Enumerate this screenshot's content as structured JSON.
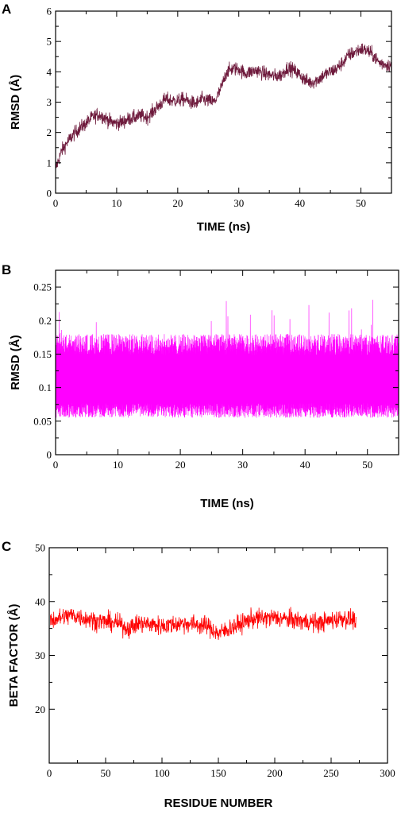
{
  "chart_data": [
    {
      "type": "line",
      "panel": "A",
      "xlabel": "TIME (ns)",
      "ylabel": "RMSD (Å)",
      "xlim": [
        0,
        55
      ],
      "ylim": [
        0,
        6
      ],
      "xticks": [
        0,
        10,
        20,
        30,
        40,
        50
      ],
      "yticks": [
        0,
        1,
        2,
        3,
        4,
        5,
        6
      ],
      "grid": false,
      "color": "#6e1a3c",
      "series": [
        {
          "x": [
            0,
            1,
            2,
            3,
            4,
            5,
            6,
            7,
            8,
            9,
            10,
            11,
            12,
            13,
            14,
            15,
            16,
            17,
            18,
            19,
            20,
            21,
            22,
            23,
            24,
            25,
            26,
            27,
            28,
            29,
            30,
            31,
            32,
            33,
            34,
            35,
            36,
            37,
            38,
            39,
            40,
            41,
            42,
            43,
            44,
            45,
            46,
            47,
            48,
            49,
            50,
            51,
            52,
            53,
            54,
            55
          ],
          "values": [
            0.8,
            1.4,
            1.7,
            1.95,
            2.15,
            2.3,
            2.5,
            2.6,
            2.5,
            2.35,
            2.3,
            2.35,
            2.45,
            2.5,
            2.55,
            2.5,
            2.7,
            2.9,
            3.1,
            3.05,
            3.05,
            3.1,
            3.0,
            2.95,
            3.1,
            3.05,
            3.0,
            3.4,
            4.0,
            4.1,
            4.1,
            3.95,
            4.0,
            4.05,
            3.95,
            3.9,
            3.85,
            3.9,
            4.15,
            4.05,
            3.9,
            3.7,
            3.65,
            3.75,
            3.9,
            4.0,
            4.1,
            4.3,
            4.55,
            4.65,
            4.75,
            4.7,
            4.55,
            4.3,
            4.25,
            4.2
          ]
        }
      ]
    },
    {
      "type": "line",
      "panel": "B",
      "xlabel": "TIME (ns)",
      "ylabel": "RMSD (Å)",
      "xlim": [
        0,
        55
      ],
      "ylim": [
        0,
        0.275
      ],
      "xticks": [
        0,
        10,
        20,
        30,
        40,
        50
      ],
      "yticks": [
        0,
        0.05,
        0.1,
        0.15,
        0.2,
        0.25
      ],
      "ytick_labels": [
        "0",
        "0.05",
        "0.1",
        "0.15",
        "0.2",
        "0.25"
      ],
      "grid": false,
      "color": "#ff00ff",
      "series": [
        {
          "x": [
            0,
            5,
            10,
            15,
            20,
            25,
            30,
            35,
            40,
            45,
            50,
            55
          ],
          "values": [
            0.11,
            0.11,
            0.11,
            0.11,
            0.11,
            0.11,
            0.11,
            0.11,
            0.11,
            0.11,
            0.11,
            0.11
          ],
          "band_low": [
            0.055,
            0.055,
            0.055,
            0.055,
            0.055,
            0.055,
            0.055,
            0.055,
            0.055,
            0.055,
            0.055,
            0.055
          ],
          "band_high": [
            0.18,
            0.18,
            0.18,
            0.18,
            0.18,
            0.18,
            0.18,
            0.18,
            0.18,
            0.18,
            0.18,
            0.18
          ]
        }
      ]
    },
    {
      "type": "line",
      "panel": "C",
      "xlabel": "RESIDUE NUMBER",
      "ylabel": "BETA FACTOR (Å)",
      "xlim": [
        0,
        300
      ],
      "ylim": [
        10,
        50
      ],
      "xticks": [
        0,
        50,
        100,
        150,
        200,
        250,
        300
      ],
      "yticks": [
        20,
        30,
        40,
        50
      ],
      "grid": false,
      "color": "#ff0000",
      "series": [
        {
          "x": [
            1,
            20,
            40,
            60,
            70,
            80,
            100,
            120,
            140,
            150,
            160,
            180,
            200,
            220,
            240,
            260,
            272
          ],
          "values": [
            36.5,
            37.5,
            36.5,
            36.0,
            35.0,
            36.0,
            35.5,
            36.0,
            35.5,
            34.0,
            35.0,
            36.8,
            37.0,
            36.5,
            36.0,
            37.0,
            36.5
          ]
        }
      ]
    }
  ]
}
